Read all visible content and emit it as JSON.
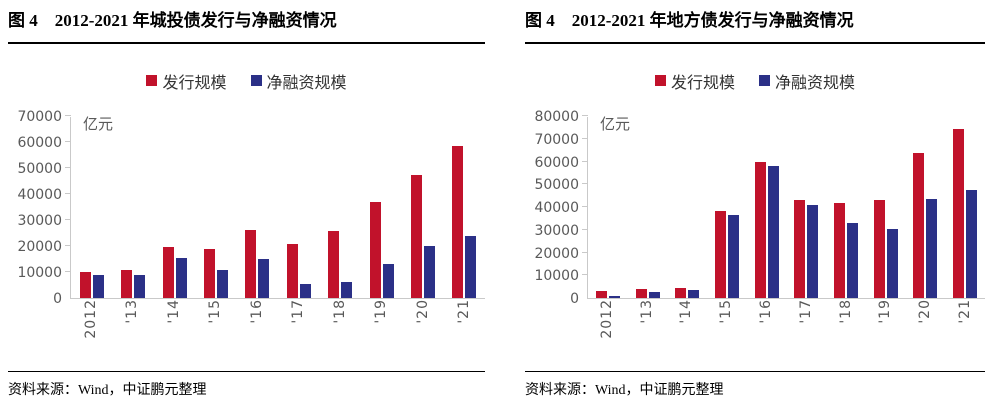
{
  "colors": {
    "issuance_red": "#c1122b",
    "net_blue": "#2b3087",
    "axis_line": "#c9c9c9",
    "tick_text": "#595959",
    "rule_black": "#000000"
  },
  "panels": [
    {
      "title": "图 4　2012-2021 年城投债发行与净融资情况",
      "source": "资料来源：Wind，中证鹏元整理"
    },
    {
      "title": "图 4　2012-2021 年地方债发行与净融资情况",
      "source": "资料来源：Wind，中证鹏元整理"
    }
  ],
  "chart_data": [
    {
      "type": "bar",
      "title": "图 4 2012-2021 年城投债发行与净融资情况",
      "unit_label": "亿元",
      "categories": [
        "2012",
        "'13",
        "'14",
        "'15",
        "'16",
        "'17",
        "'18",
        "'19",
        "'20",
        "'21"
      ],
      "series": [
        {
          "name": "发行规模",
          "color_key": "issuance_red",
          "values": [
            9900,
            10700,
            19700,
            18900,
            26300,
            20600,
            25700,
            36900,
            47500,
            58400
          ]
        },
        {
          "name": "净融资规模",
          "color_key": "net_blue",
          "values": [
            9000,
            8700,
            15400,
            10700,
            15000,
            5500,
            6000,
            13200,
            19900,
            24000
          ]
        }
      ],
      "xlabel": "",
      "ylabel": "亿元",
      "ylim": [
        0,
        70000
      ],
      "ytick_step": 10000,
      "grid": false,
      "legend_position": "top-center",
      "xlabel_rotation": -90
    },
    {
      "type": "bar",
      "title": "图 4 2012-2021 年地方债发行与净融资情况",
      "unit_label": "亿元",
      "categories": [
        "2012",
        "'13",
        "'14",
        "'15",
        "'16",
        "'17",
        "'18",
        "'19",
        "'20",
        "'21"
      ],
      "series": [
        {
          "name": "发行规模",
          "color_key": "issuance_red",
          "values": [
            3000,
            3850,
            4400,
            38350,
            59800,
            43300,
            41650,
            43200,
            63900,
            74300
          ]
        },
        {
          "name": "净融资规模",
          "color_key": "net_blue",
          "values": [
            850,
            2550,
            3400,
            36350,
            57950,
            40900,
            33100,
            30500,
            43450,
            47700
          ]
        }
      ],
      "xlabel": "",
      "ylabel": "亿元",
      "ylim": [
        0,
        80000
      ],
      "ytick_step": 10000,
      "grid": false,
      "legend_position": "top-center",
      "xlabel_rotation": -90
    }
  ]
}
